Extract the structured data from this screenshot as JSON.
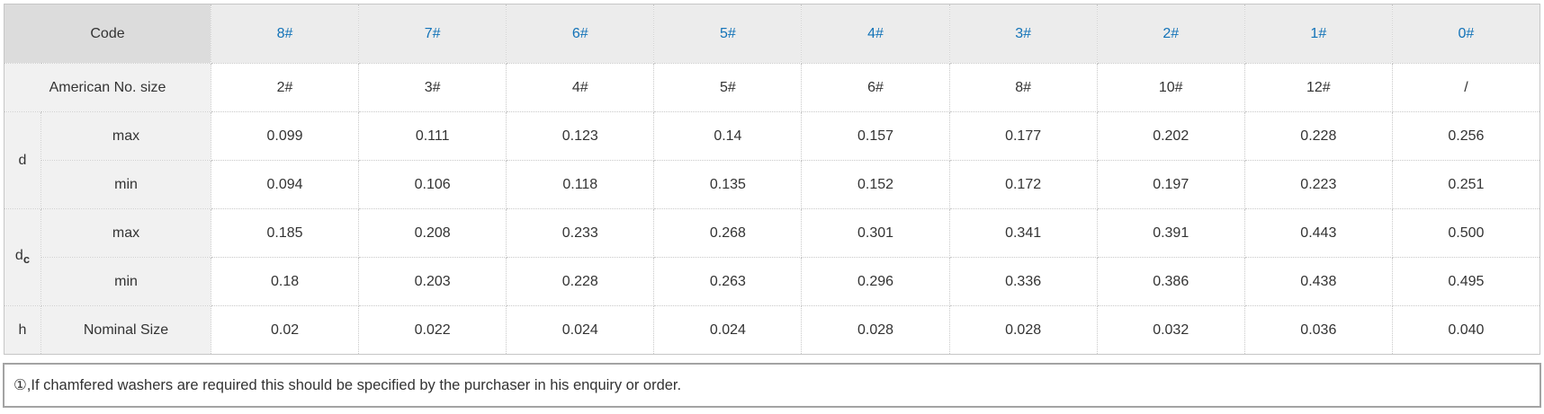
{
  "colors": {
    "code_cell_bg": "#dcdcdc",
    "code_header_bg": "#ececec",
    "label_bg": "#f1f1f1",
    "accent_blue": "#1373b8",
    "text": "#333333",
    "cell_border": "#c9c9c9",
    "note_border": "#a3a3a3"
  },
  "header": {
    "code_label": "Code",
    "codes": [
      "8#",
      "7#",
      "6#",
      "5#",
      "4#",
      "3#",
      "2#",
      "1#",
      "0#"
    ]
  },
  "rows": {
    "american": {
      "label": "American No. size",
      "values": [
        "2#",
        "3#",
        "4#",
        "5#",
        "6#",
        "8#",
        "10#",
        "12#",
        "/"
      ]
    },
    "d_max": {
      "label": "max",
      "values": [
        "0.099",
        "0.111",
        "0.123",
        "0.14",
        "0.157",
        "0.177",
        "0.202",
        "0.228",
        "0.256"
      ]
    },
    "d_min": {
      "label": "min",
      "values": [
        "0.094",
        "0.106",
        "0.118",
        "0.135",
        "0.152",
        "0.172",
        "0.197",
        "0.223",
        "0.251"
      ]
    },
    "dc_max": {
      "label": "max",
      "values": [
        "0.185",
        "0.208",
        "0.233",
        "0.268",
        "0.301",
        "0.341",
        "0.391",
        "0.443",
        "0.500"
      ]
    },
    "dc_min": {
      "label": "min",
      "values": [
        "0.18",
        "0.203",
        "0.228",
        "0.263",
        "0.296",
        "0.336",
        "0.386",
        "0.438",
        "0.495"
      ]
    },
    "h_nominal": {
      "label": "Nominal Size",
      "values": [
        "0.02",
        "0.022",
        "0.024",
        "0.024",
        "0.028",
        "0.028",
        "0.032",
        "0.036",
        "0.040"
      ]
    }
  },
  "group_labels": {
    "d": "d",
    "dc_base": "d",
    "dc_sub": "c",
    "h": "h"
  },
  "note": "①,If chamfered washers are required this should be specified by the purchaser in his enquiry or order."
}
